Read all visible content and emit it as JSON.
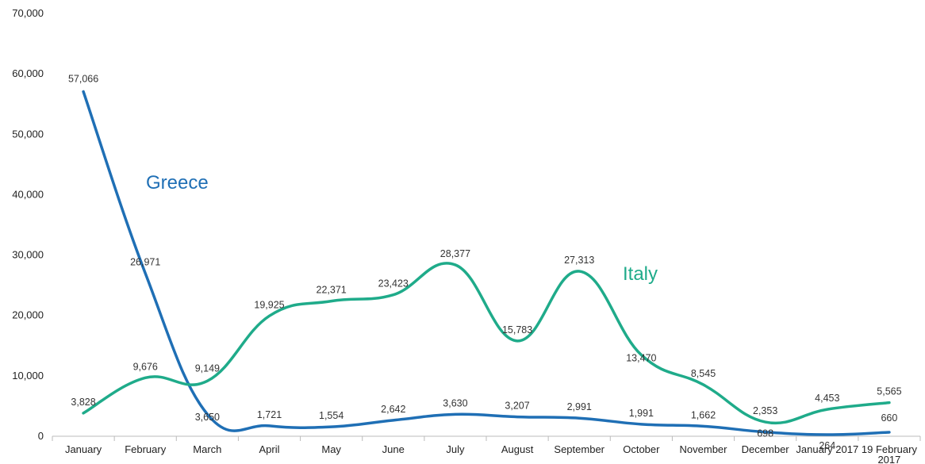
{
  "chart_data": {
    "type": "line",
    "title": "",
    "xlabel": "",
    "ylabel": "",
    "ylim": [
      0,
      70000
    ],
    "yticks": [
      "0",
      "10,000",
      "20,000",
      "30,000",
      "40,000",
      "50,000",
      "60,000",
      "70,000"
    ],
    "yticks_values": [
      0,
      10000,
      20000,
      30000,
      40000,
      50000,
      60000,
      70000
    ],
    "grid": false,
    "categories": [
      "January",
      "February",
      "March",
      "April",
      "May",
      "June",
      "July",
      "August",
      "September",
      "October",
      "November",
      "December",
      "January 2017",
      "19 February 2017"
    ],
    "category_lines": [
      [
        "January"
      ],
      [
        "February"
      ],
      [
        "March"
      ],
      [
        "April"
      ],
      [
        "May"
      ],
      [
        "June"
      ],
      [
        "July"
      ],
      [
        "August"
      ],
      [
        "September"
      ],
      [
        "October"
      ],
      [
        "November"
      ],
      [
        "December"
      ],
      [
        "January 2017"
      ],
      [
        "19 February",
        "2017"
      ]
    ],
    "series": [
      {
        "name": "Greece",
        "color": "#1f6fb5",
        "values": [
          57066,
          26971,
          3650,
          1721,
          1554,
          2642,
          3630,
          3207,
          2991,
          1991,
          1662,
          698,
          264,
          660
        ],
        "labels": [
          "57,066",
          "26,971",
          "3,650",
          "1,721",
          "1,554",
          "2,642",
          "3,630",
          "3,207",
          "2,991",
          "1,991",
          "1,662",
          "698",
          "264",
          "660"
        ]
      },
      {
        "name": "Italy",
        "color": "#1fab8a",
        "values": [
          3828,
          9676,
          9149,
          19925,
          22371,
          23423,
          28377,
          15783,
          27313,
          13470,
          8545,
          2353,
          4453,
          5565
        ],
        "labels": [
          "3,828",
          "9,676",
          "9,149",
          "19,925",
          "22,371",
          "23,423",
          "28,377",
          "15,783",
          "27,313",
          "13,470",
          "8,545",
          "2,353",
          "4,453",
          "5,565"
        ]
      }
    ]
  }
}
